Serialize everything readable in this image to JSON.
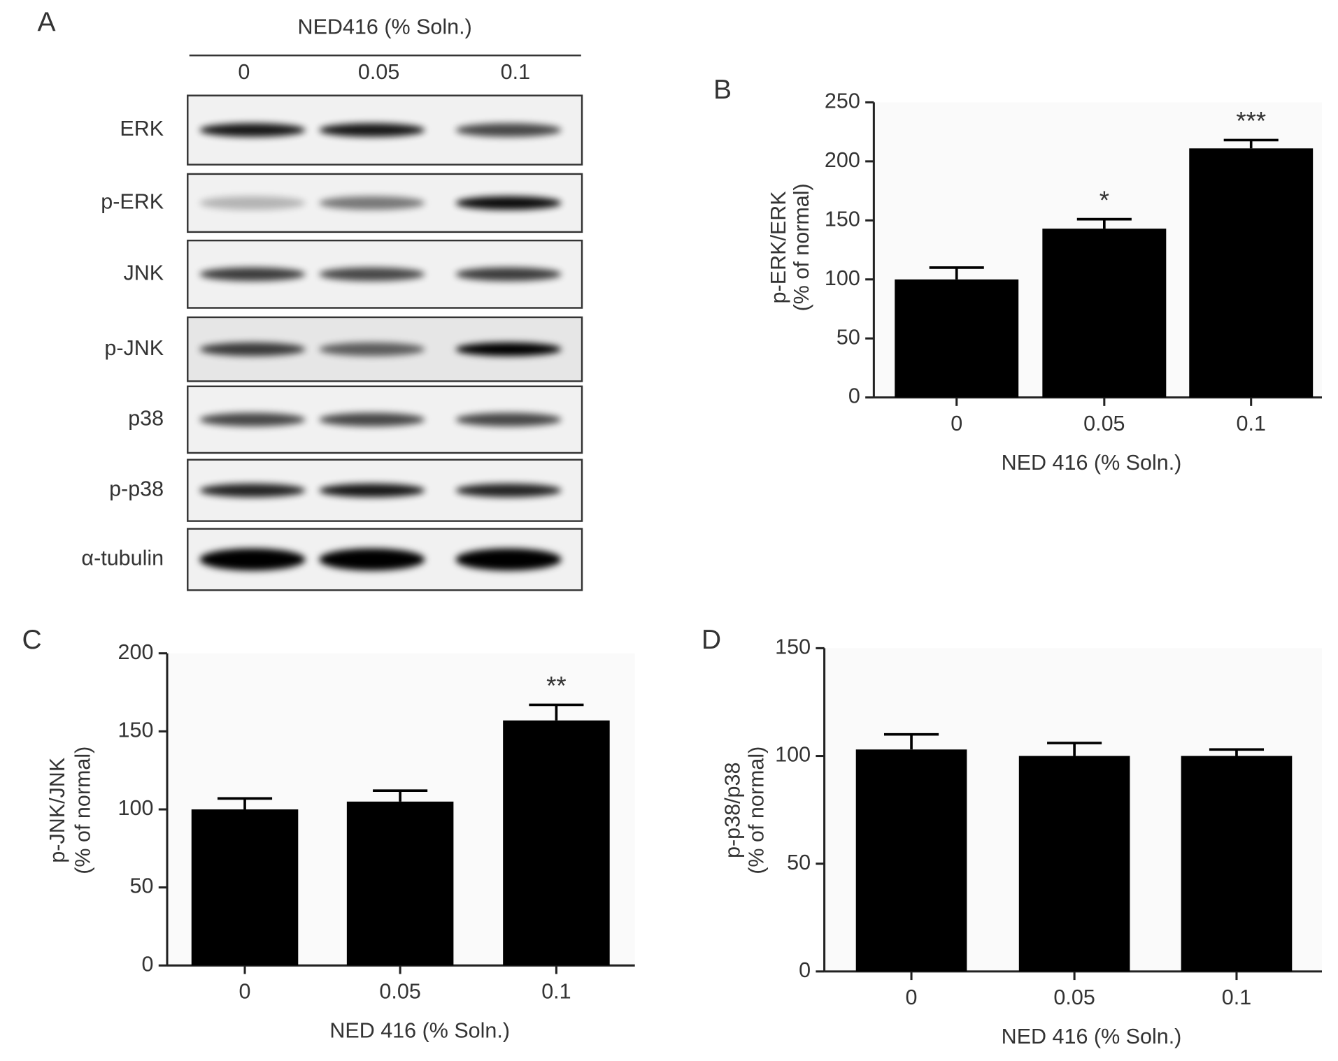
{
  "blot": {
    "panel": "A",
    "header": "NED416 (% Soln.)",
    "lanes": [
      "0",
      "0.05",
      "0.1"
    ],
    "rows": [
      "ERK",
      "p-ERK",
      "JNK",
      "p-JNK",
      "p38",
      "p-p38",
      "α-tubulin"
    ]
  },
  "chart_data": [
    {
      "type": "bar",
      "panel": "B",
      "categories": [
        "0",
        "0.05",
        "0.1"
      ],
      "values": [
        100,
        143,
        211
      ],
      "errors": [
        10,
        8,
        7
      ],
      "significance": [
        null,
        "*",
        "***"
      ],
      "color": "#000000",
      "ylim": [
        0,
        250
      ],
      "yticks": [
        0,
        50,
        100,
        150,
        200,
        250
      ],
      "ylabel": [
        "p-ERK/ERK",
        "(% of normal)"
      ],
      "xlabel": "NED 416 (% Soln.)"
    },
    {
      "type": "bar",
      "panel": "C",
      "categories": [
        "0",
        "0.05",
        "0.1"
      ],
      "values": [
        100,
        105,
        157
      ],
      "errors": [
        7,
        7,
        10
      ],
      "significance": [
        null,
        null,
        "**"
      ],
      "color": "#000000",
      "ylim": [
        0,
        200
      ],
      "yticks": [
        0,
        50,
        100,
        150,
        200
      ],
      "ylabel": [
        "p-JNK/JNK",
        "(% of normal)"
      ],
      "xlabel": "NED 416 (% Soln.)"
    },
    {
      "type": "bar",
      "panel": "D",
      "categories": [
        "0",
        "0.05",
        "0.1"
      ],
      "values": [
        103,
        100,
        100
      ],
      "errors": [
        7,
        6,
        3
      ],
      "significance": [
        null,
        null,
        null
      ],
      "color": "#000000",
      "ylim": [
        0,
        150
      ],
      "yticks": [
        0,
        50,
        100,
        150
      ],
      "ylabel": [
        "p-p38/p38",
        "(% of normal)"
      ],
      "xlabel": "NED 416 (% Soln.)"
    }
  ]
}
